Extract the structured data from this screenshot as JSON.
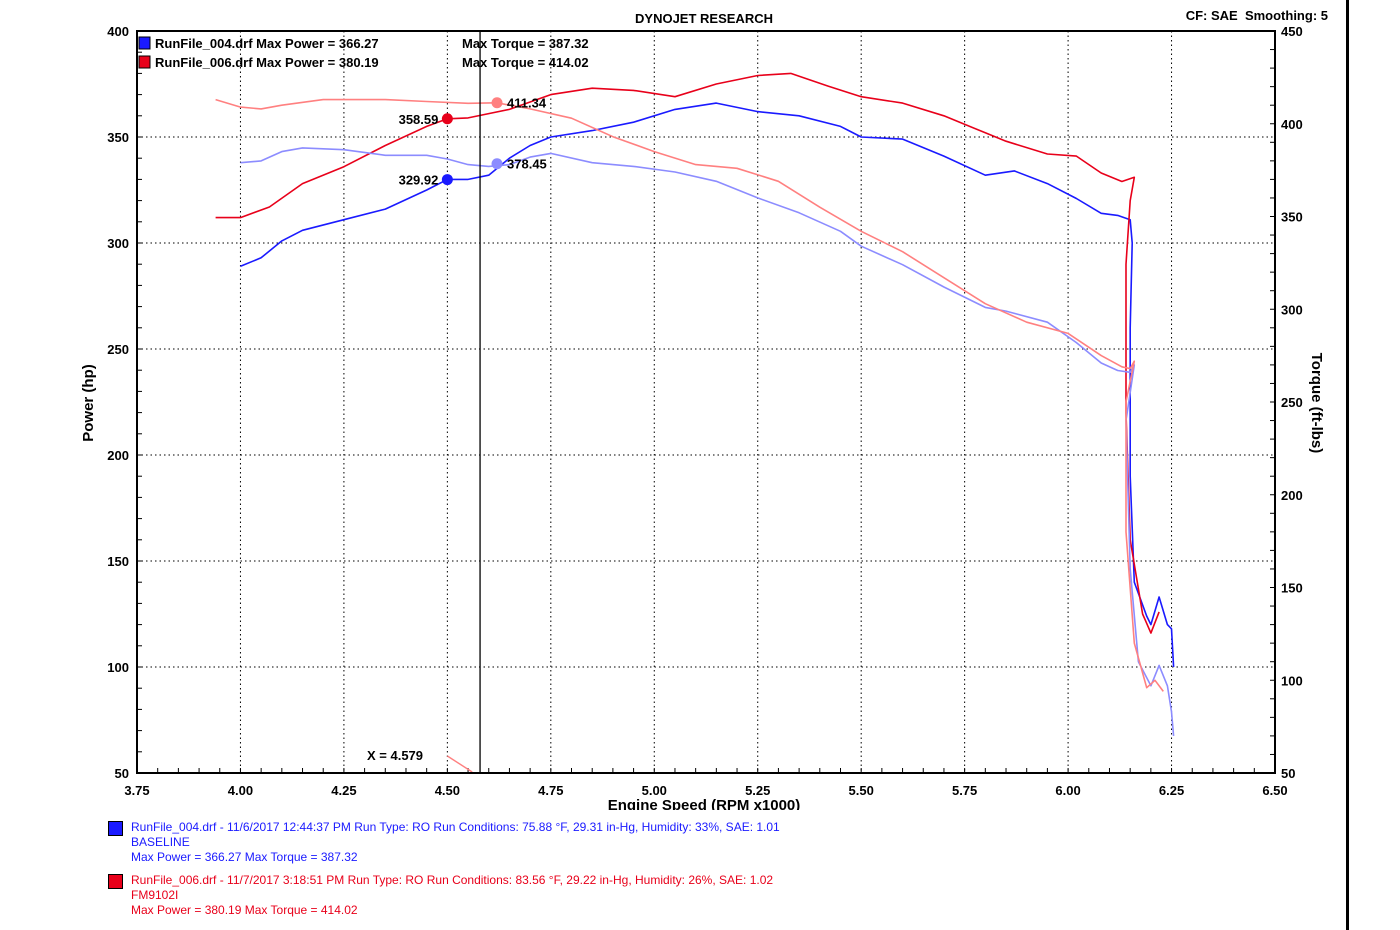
{
  "header": {
    "title": "DYNOJET RESEARCH",
    "corner": "CF: SAE  Smoothing: 5"
  },
  "legend": [
    {
      "text": "RunFile_004.drf Max Power = 366.27",
      "torque": "Max Torque = 387.32",
      "color": "#1a1aff"
    },
    {
      "text": "RunFile_006.drf Max Power = 380.19",
      "torque": "Max Torque = 414.02",
      "color": "#e8001a"
    }
  ],
  "cursor": {
    "label": "X = 4.579",
    "x": 4.579
  },
  "footer": {
    "run1": {
      "line1": "RunFile_004.drf - 11/6/2017 12:44:37 PM  Run Type: RO  Run Conditions: 75.88 °F, 29.31 in-Hg,  Humidity:  33%, SAE: 1.01",
      "line2": "BASELINE",
      "line3": "Max Power = 366.27  Max Torque = 387.32"
    },
    "run2": {
      "line1": "RunFile_006.drf - 11/7/2017 3:18:51 PM  Run Type: RO  Run Conditions: 83.56 °F, 29.22 in-Hg,  Humidity:  26%, SAE: 1.02",
      "line2": "FM9102I",
      "line3": "Max Power = 380.19  Max Torque = 414.02"
    }
  },
  "chart_data": {
    "type": "line",
    "title": "DYNOJET RESEARCH",
    "xlabel": "Engine Speed (RPM x1000)",
    "ylabel": "Power (hp)",
    "y2label": "Torque (ft-lbs)",
    "xlim": [
      3.75,
      6.5
    ],
    "ylim": [
      50,
      400
    ],
    "y2lim": [
      50,
      450
    ],
    "x_ticks": [
      "3.75",
      "4.00",
      "4.25",
      "4.50",
      "4.75",
      "5.00",
      "5.25",
      "5.50",
      "5.75",
      "6.00",
      "6.25",
      "6.50"
    ],
    "y_ticks": [
      "50",
      "100",
      "150",
      "200",
      "250",
      "300",
      "350",
      "400"
    ],
    "y2_ticks": [
      "50",
      "100",
      "150",
      "200",
      "250",
      "300",
      "350",
      "400",
      "450"
    ],
    "grid": true,
    "legend_position": "top-left",
    "series": [
      {
        "name": "RunFile_004.drf",
        "measure": "power",
        "axis": "left",
        "color": "#1a1aff",
        "points": [
          [
            4.0,
            289
          ],
          [
            4.05,
            293
          ],
          [
            4.1,
            301
          ],
          [
            4.15,
            306
          ],
          [
            4.25,
            311
          ],
          [
            4.35,
            316
          ],
          [
            4.45,
            325
          ],
          [
            4.5,
            330
          ],
          [
            4.55,
            330
          ],
          [
            4.6,
            332
          ],
          [
            4.65,
            340
          ],
          [
            4.7,
            346
          ],
          [
            4.75,
            350
          ],
          [
            4.85,
            353
          ],
          [
            4.95,
            357
          ],
          [
            5.05,
            363
          ],
          [
            5.15,
            366
          ],
          [
            5.25,
            362
          ],
          [
            5.35,
            360
          ],
          [
            5.45,
            355
          ],
          [
            5.5,
            350
          ],
          [
            5.6,
            349
          ],
          [
            5.7,
            341
          ],
          [
            5.8,
            332
          ],
          [
            5.87,
            334
          ],
          [
            5.95,
            328
          ],
          [
            6.02,
            321
          ],
          [
            6.08,
            314
          ],
          [
            6.12,
            313
          ],
          [
            6.15,
            311
          ],
          [
            6.155,
            300
          ],
          [
            6.15,
            260
          ],
          [
            6.15,
            190
          ],
          [
            6.16,
            140
          ],
          [
            6.19,
            124
          ],
          [
            6.2,
            120
          ],
          [
            6.22,
            133
          ],
          [
            6.24,
            120
          ],
          [
            6.25,
            118
          ],
          [
            6.255,
            100
          ]
        ]
      },
      {
        "name": "RunFile_006.drf",
        "measure": "power",
        "axis": "left",
        "color": "#e8001a",
        "points": [
          [
            3.94,
            312
          ],
          [
            4.0,
            312
          ],
          [
            4.07,
            317
          ],
          [
            4.15,
            328
          ],
          [
            4.25,
            336
          ],
          [
            4.35,
            346
          ],
          [
            4.45,
            355
          ],
          [
            4.5,
            358.6
          ],
          [
            4.55,
            359
          ],
          [
            4.65,
            363
          ],
          [
            4.75,
            370
          ],
          [
            4.85,
            373
          ],
          [
            4.95,
            372
          ],
          [
            5.05,
            369
          ],
          [
            5.15,
            375
          ],
          [
            5.25,
            379
          ],
          [
            5.33,
            380
          ],
          [
            5.42,
            374
          ],
          [
            5.5,
            369
          ],
          [
            5.6,
            366
          ],
          [
            5.7,
            360
          ],
          [
            5.8,
            352
          ],
          [
            5.85,
            348
          ],
          [
            5.95,
            342
          ],
          [
            6.02,
            341
          ],
          [
            6.08,
            333
          ],
          [
            6.13,
            329
          ],
          [
            6.16,
            331
          ],
          [
            6.15,
            320
          ],
          [
            6.14,
            290
          ],
          [
            6.14,
            220
          ],
          [
            6.15,
            160
          ],
          [
            6.18,
            125
          ],
          [
            6.2,
            116
          ],
          [
            6.22,
            126
          ]
        ]
      },
      {
        "name": "RunFile_004.drf",
        "measure": "torque",
        "axis": "right",
        "color": "#8c8cff",
        "points": [
          [
            4.0,
            379
          ],
          [
            4.05,
            380
          ],
          [
            4.1,
            385
          ],
          [
            4.15,
            387
          ],
          [
            4.25,
            386
          ],
          [
            4.35,
            383
          ],
          [
            4.45,
            383
          ],
          [
            4.5,
            381
          ],
          [
            4.55,
            378
          ],
          [
            4.6,
            377
          ],
          [
            4.65,
            378
          ],
          [
            4.7,
            382
          ],
          [
            4.75,
            384
          ],
          [
            4.85,
            379
          ],
          [
            4.95,
            377
          ],
          [
            5.05,
            374
          ],
          [
            5.15,
            369
          ],
          [
            5.25,
            360
          ],
          [
            5.35,
            352
          ],
          [
            5.45,
            342
          ],
          [
            5.5,
            334
          ],
          [
            5.6,
            324
          ],
          [
            5.7,
            312
          ],
          [
            5.8,
            301
          ],
          [
            5.85,
            299
          ],
          [
            5.95,
            293
          ],
          [
            6.02,
            282
          ],
          [
            6.08,
            271
          ],
          [
            6.12,
            267
          ],
          [
            6.15,
            266
          ],
          [
            6.16,
            270
          ],
          [
            6.14,
            240
          ],
          [
            6.15,
            160
          ],
          [
            6.17,
            110
          ],
          [
            6.2,
            97
          ],
          [
            6.22,
            108
          ],
          [
            6.24,
            97
          ],
          [
            6.25,
            83
          ],
          [
            6.255,
            70
          ]
        ]
      },
      {
        "name": "RunFile_006.drf",
        "measure": "torque",
        "axis": "right",
        "color": "#ff8080",
        "points": [
          [
            3.94,
            413
          ],
          [
            4.0,
            409
          ],
          [
            4.05,
            408
          ],
          [
            4.1,
            410
          ],
          [
            4.2,
            413
          ],
          [
            4.35,
            413
          ],
          [
            4.45,
            412
          ],
          [
            4.55,
            411
          ],
          [
            4.62,
            411.3
          ],
          [
            4.7,
            408
          ],
          [
            4.8,
            403
          ],
          [
            4.9,
            393
          ],
          [
            5.0,
            385
          ],
          [
            5.1,
            378
          ],
          [
            5.2,
            376
          ],
          [
            5.3,
            369
          ],
          [
            5.4,
            355
          ],
          [
            5.5,
            342
          ],
          [
            5.6,
            331
          ],
          [
            5.7,
            317
          ],
          [
            5.8,
            303
          ],
          [
            5.9,
            293
          ],
          [
            6.0,
            287
          ],
          [
            6.08,
            275
          ],
          [
            6.13,
            269
          ],
          [
            6.15,
            268
          ],
          [
            6.16,
            272
          ],
          [
            6.14,
            250
          ],
          [
            6.14,
            180
          ],
          [
            6.16,
            120
          ],
          [
            6.19,
            96
          ],
          [
            6.21,
            100
          ],
          [
            6.23,
            94
          ]
        ]
      }
    ],
    "markers": [
      {
        "x": 4.5,
        "y": 329.92,
        "axis": "left",
        "label": "329.92",
        "color": "#1a1aff"
      },
      {
        "x": 4.5,
        "y": 358.59,
        "axis": "left",
        "label": "358.59",
        "color": "#e8001a"
      },
      {
        "x": 4.62,
        "y": 378.45,
        "axis": "right",
        "label": "378.45",
        "color": "#8c8cff"
      },
      {
        "x": 4.62,
        "y": 411.34,
        "axis": "right",
        "label": "411.34",
        "color": "#ff8080"
      }
    ]
  }
}
